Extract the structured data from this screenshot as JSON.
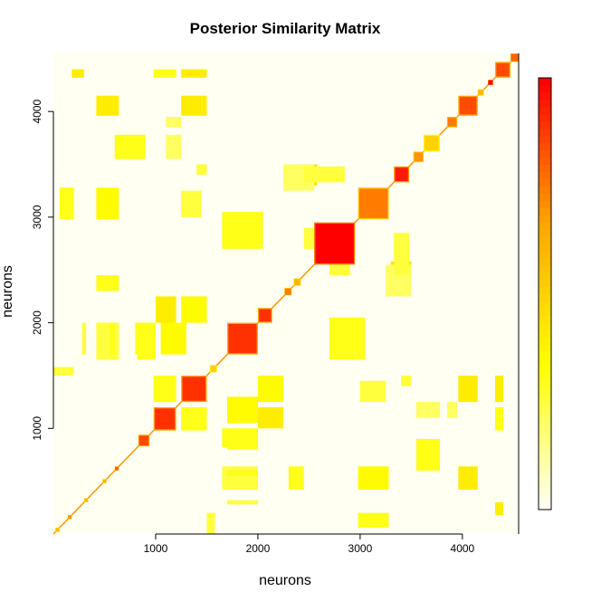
{
  "chart_data": {
    "type": "heatmap",
    "title": "Posterior Similarity Matrix",
    "xlabel": "neurons",
    "ylabel": "neurons",
    "xlim": [
      0,
      4550
    ],
    "ylim": [
      0,
      4550
    ],
    "x_ticks": [
      1000,
      2000,
      3000,
      4000
    ],
    "y_ticks": [
      1000,
      2000,
      3000,
      4000
    ],
    "color_scale": [
      "#FFFFF2",
      "#FFFF00",
      "#FFA500",
      "#FF0000"
    ],
    "value_range": [
      0,
      1
    ],
    "diagonal_blocks": [
      {
        "start": 4470,
        "end": 4550,
        "value": 0.8
      },
      {
        "start": 4320,
        "end": 4470,
        "value": 0.85
      },
      {
        "start": 4250,
        "end": 4300,
        "value": 1.0
      },
      {
        "start": 4150,
        "end": 4210,
        "value": 0.6
      },
      {
        "start": 3960,
        "end": 4150,
        "value": 0.85
      },
      {
        "start": 3850,
        "end": 3950,
        "value": 0.75
      },
      {
        "start": 3620,
        "end": 3780,
        "value": 0.5
      },
      {
        "start": 3520,
        "end": 3620,
        "value": 0.7
      },
      {
        "start": 3330,
        "end": 3480,
        "value": 0.95
      },
      {
        "start": 2980,
        "end": 3280,
        "value": 0.75
      },
      {
        "start": 2550,
        "end": 2950,
        "value": 1.0
      },
      {
        "start": 2350,
        "end": 2420,
        "value": 0.6
      },
      {
        "start": 2260,
        "end": 2330,
        "value": 0.75
      },
      {
        "start": 2000,
        "end": 2140,
        "value": 0.9
      },
      {
        "start": 1700,
        "end": 2000,
        "value": 0.9
      },
      {
        "start": 1530,
        "end": 1600,
        "value": 0.5
      },
      {
        "start": 1250,
        "end": 1500,
        "value": 0.9
      },
      {
        "start": 980,
        "end": 1200,
        "value": 0.9
      },
      {
        "start": 830,
        "end": 940,
        "value": 0.85
      },
      {
        "start": 600,
        "end": 640,
        "value": 0.8
      },
      {
        "start": 480,
        "end": 520,
        "value": 0.6
      },
      {
        "start": 300,
        "end": 340,
        "value": 0.6
      },
      {
        "start": 140,
        "end": 180,
        "value": 0.7
      },
      {
        "start": 20,
        "end": 60,
        "value": 0.6
      }
    ],
    "off_diagonal_blocks": [
      {
        "x": [
          180,
          300
        ],
        "y": [
          4320,
          4400
        ],
        "value": 0.4
      },
      {
        "x": [
          420,
          640
        ],
        "y": [
          3960,
          4150
        ],
        "value": 0.4
      },
      {
        "x": [
          1250,
          1500
        ],
        "y": [
          4320,
          4400
        ],
        "value": 0.4
      },
      {
        "x": [
          1250,
          1500
        ],
        "y": [
          3960,
          4150
        ],
        "value": 0.4
      },
      {
        "x": [
          980,
          1200
        ],
        "y": [
          4320,
          4400
        ],
        "value": 0.3
      },
      {
        "x": [
          1250,
          1500
        ],
        "y": [
          980,
          1200
        ],
        "value": 0.3
      },
      {
        "x": [
          420,
          640
        ],
        "y": [
          2980,
          3280
        ],
        "value": 0.35
      },
      {
        "x": [
          60,
          200
        ],
        "y": [
          2980,
          3280
        ],
        "value": 0.3
      },
      {
        "x": [
          1400,
          1500
        ],
        "y": [
          3400,
          3500
        ],
        "value": 0.25
      },
      {
        "x": [
          1000,
          1200
        ],
        "y": [
          2000,
          2250
        ],
        "value": 0.4
      },
      {
        "x": [
          1250,
          1500
        ],
        "y": [
          2000,
          2250
        ],
        "value": 0.35
      },
      {
        "x": [
          2380,
          2580
        ],
        "y": [
          3300,
          3500
        ],
        "value": 0.45
      },
      {
        "x": [
          2250,
          2550
        ],
        "y": [
          3250,
          3500
        ],
        "value": 0.2
      },
      {
        "x": [
          1700,
          2000
        ],
        "y": [
          1050,
          1300
        ],
        "value": 0.35
      },
      {
        "x": [
          1700,
          2000
        ],
        "y": [
          800,
          900
        ],
        "value": 0.3
      },
      {
        "x": [
          2700,
          3050
        ],
        "y": [
          1650,
          2050
        ],
        "value": 0.3
      },
      {
        "x": [
          2700,
          2900
        ],
        "y": [
          2450,
          2850
        ],
        "value": 0.25
      },
      {
        "x": [
          3550,
          3780
        ],
        "y": [
          600,
          900
        ],
        "value": 0.3
      },
      {
        "x": [
          3330,
          3480
        ],
        "y": [
          2450,
          2850
        ],
        "value": 0.25
      },
      {
        "x": [
          820,
          1000
        ],
        "y": [
          1650,
          2000
        ],
        "value": 0.3
      },
      {
        "x": [
          420,
          640
        ],
        "y": [
          1650,
          2000
        ],
        "value": 0.25
      },
      {
        "x": [
          420,
          640
        ],
        "y": [
          2300,
          2450
        ],
        "value": 0.3
      },
      {
        "x": [
          0,
          200
        ],
        "y": [
          1500,
          1580
        ],
        "value": 0.25
      },
      {
        "x": [
          1700,
          2000
        ],
        "y": [
          550,
          600
        ],
        "value": 0.3
      },
      {
        "x": [
          1700,
          2000
        ],
        "y": [
          280,
          320
        ],
        "value": 0.25
      },
      {
        "x": [
          3550,
          3780
        ],
        "y": [
          1100,
          1250
        ],
        "value": 0.2
      },
      {
        "x": [
          3850,
          3950
        ],
        "y": [
          1100,
          1250
        ],
        "value": 0.2
      },
      {
        "x": [
          3000,
          3250
        ],
        "y": [
          1250,
          1450
        ],
        "value": 0.25
      }
    ]
  }
}
